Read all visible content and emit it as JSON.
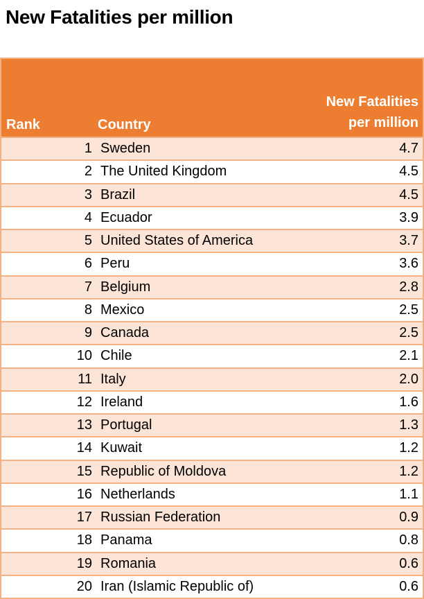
{
  "page": {
    "title": "New Fatalities per million"
  },
  "table": {
    "header": {
      "rank": "Rank",
      "country": "Country",
      "value": "New Fatalities\nper million"
    },
    "rows": [
      {
        "rank": "1",
        "country": "Sweden",
        "value": "4.7"
      },
      {
        "rank": "2",
        "country": "The United Kingdom",
        "value": "4.5"
      },
      {
        "rank": "3",
        "country": "Brazil",
        "value": "4.5"
      },
      {
        "rank": "4",
        "country": "Ecuador",
        "value": "3.9"
      },
      {
        "rank": "5",
        "country": "United States of America",
        "value": "3.7"
      },
      {
        "rank": "6",
        "country": "Peru",
        "value": "3.6"
      },
      {
        "rank": "7",
        "country": "Belgium",
        "value": "2.8"
      },
      {
        "rank": "8",
        "country": "Mexico",
        "value": "2.5"
      },
      {
        "rank": "9",
        "country": "Canada",
        "value": "2.5"
      },
      {
        "rank": "10",
        "country": "Chile",
        "value": "2.1"
      },
      {
        "rank": "11",
        "country": "Italy",
        "value": "2.0"
      },
      {
        "rank": "12",
        "country": "Ireland",
        "value": "1.6"
      },
      {
        "rank": "13",
        "country": "Portugal",
        "value": "1.3"
      },
      {
        "rank": "14",
        "country": "Kuwait",
        "value": "1.2"
      },
      {
        "rank": "15",
        "country": "Republic of Moldova",
        "value": "1.2"
      },
      {
        "rank": "16",
        "country": "Netherlands",
        "value": "1.1"
      },
      {
        "rank": "17",
        "country": "Russian Federation",
        "value": "0.9"
      },
      {
        "rank": "18",
        "country": "Panama",
        "value": "0.8"
      },
      {
        "rank": "19",
        "country": "Romania",
        "value": "0.6"
      },
      {
        "rank": "20",
        "country": "Iran (Islamic Republic of)",
        "value": "0.6"
      }
    ]
  },
  "colors": {
    "header_bg": "#ED7D31",
    "row_alt_bg": "#FCE4D6",
    "row_bg": "#FFFFFF",
    "border": "#F4B183",
    "header_text": "#FFFFFF",
    "title_text": "#000000"
  },
  "chart_data": {
    "type": "table",
    "title": "New Fatalities per million",
    "columns": [
      "Rank",
      "Country",
      "New Fatalities per million"
    ],
    "rows": [
      [
        1,
        "Sweden",
        4.7
      ],
      [
        2,
        "The United Kingdom",
        4.5
      ],
      [
        3,
        "Brazil",
        4.5
      ],
      [
        4,
        "Ecuador",
        3.9
      ],
      [
        5,
        "United States of America",
        3.7
      ],
      [
        6,
        "Peru",
        3.6
      ],
      [
        7,
        "Belgium",
        2.8
      ],
      [
        8,
        "Mexico",
        2.5
      ],
      [
        9,
        "Canada",
        2.5
      ],
      [
        10,
        "Chile",
        2.1
      ],
      [
        11,
        "Italy",
        2.0
      ],
      [
        12,
        "Ireland",
        1.6
      ],
      [
        13,
        "Portugal",
        1.3
      ],
      [
        14,
        "Kuwait",
        1.2
      ],
      [
        15,
        "Republic of Moldova",
        1.2
      ],
      [
        16,
        "Netherlands",
        1.1
      ],
      [
        17,
        "Russian Federation",
        0.9
      ],
      [
        18,
        "Panama",
        0.8
      ],
      [
        19,
        "Romania",
        0.6
      ],
      [
        20,
        "Iran (Islamic Republic of)",
        0.6
      ]
    ],
    "layout_hints": {
      "value_alignment": "right",
      "rank_alignment": "right",
      "striped": true,
      "stripe_color": "#FCE4D6",
      "header_color": "#ED7D31"
    }
  }
}
